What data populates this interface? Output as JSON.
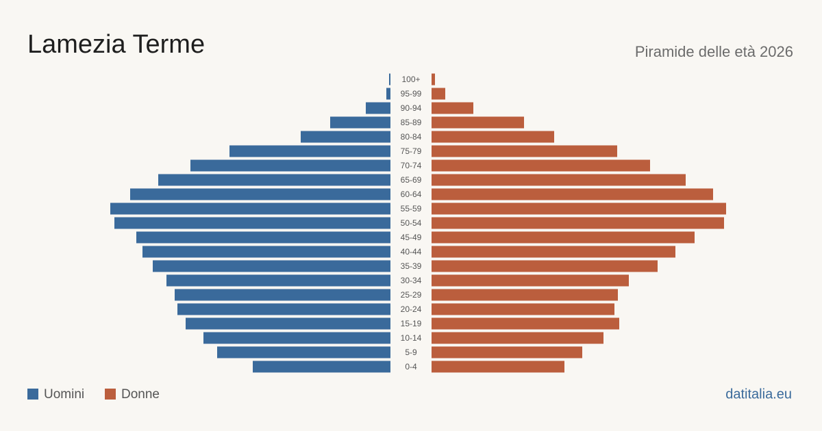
{
  "chart_data": {
    "type": "pyramid",
    "title": "Lamezia Terme",
    "subtitle": "Piramide delle età 2026",
    "source": "datitalia.eu",
    "categories": [
      "100+",
      "95-99",
      "90-94",
      "85-89",
      "80-84",
      "75-79",
      "70-74",
      "65-69",
      "60-64",
      "55-59",
      "50-54",
      "45-49",
      "40-44",
      "35-39",
      "30-34",
      "25-29",
      "20-24",
      "15-19",
      "10-14",
      "5-9",
      "0-4"
    ],
    "series": [
      {
        "name": "Uomini",
        "color": "#3a6a9b",
        "side": "left",
        "values": [
          2,
          6,
          36,
          88,
          131,
          235,
          292,
          339,
          380,
          409,
          403,
          371,
          362,
          347,
          327,
          315,
          311,
          299,
          273,
          253,
          201
        ]
      },
      {
        "name": "Donne",
        "color": "#bb5e3d",
        "side": "right",
        "values": [
          5,
          20,
          61,
          135,
          179,
          271,
          319,
          371,
          411,
          430,
          427,
          384,
          356,
          330,
          288,
          272,
          267,
          274,
          251,
          220,
          194
        ]
      }
    ]
  }
}
